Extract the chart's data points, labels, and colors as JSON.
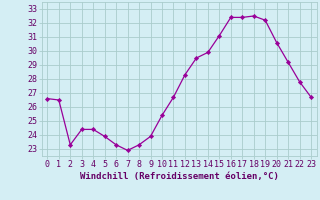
{
  "x": [
    0,
    1,
    2,
    3,
    4,
    5,
    6,
    7,
    8,
    9,
    10,
    11,
    12,
    13,
    14,
    15,
    16,
    17,
    18,
    19,
    20,
    21,
    22,
    23
  ],
  "y": [
    26.6,
    26.5,
    23.3,
    24.4,
    24.4,
    23.9,
    23.3,
    22.9,
    23.3,
    23.9,
    25.4,
    26.7,
    28.3,
    29.5,
    29.9,
    31.1,
    32.4,
    32.4,
    32.5,
    32.2,
    30.6,
    29.2,
    27.8,
    26.7
  ],
  "line_color": "#990099",
  "marker": "D",
  "marker_size": 2.2,
  "bg_color": "#d4eef4",
  "grid_color": "#aacccc",
  "ylabel_ticks": [
    23,
    24,
    25,
    26,
    27,
    28,
    29,
    30,
    31,
    32,
    33
  ],
  "xlabel": "Windchill (Refroidissement éolien,°C)",
  "ylim": [
    22.5,
    33.5
  ],
  "xlim": [
    -0.5,
    23.5
  ],
  "label_color": "#660066",
  "axis_label_fontsize": 6.5,
  "tick_fontsize": 6.0,
  "linewidth": 0.9
}
